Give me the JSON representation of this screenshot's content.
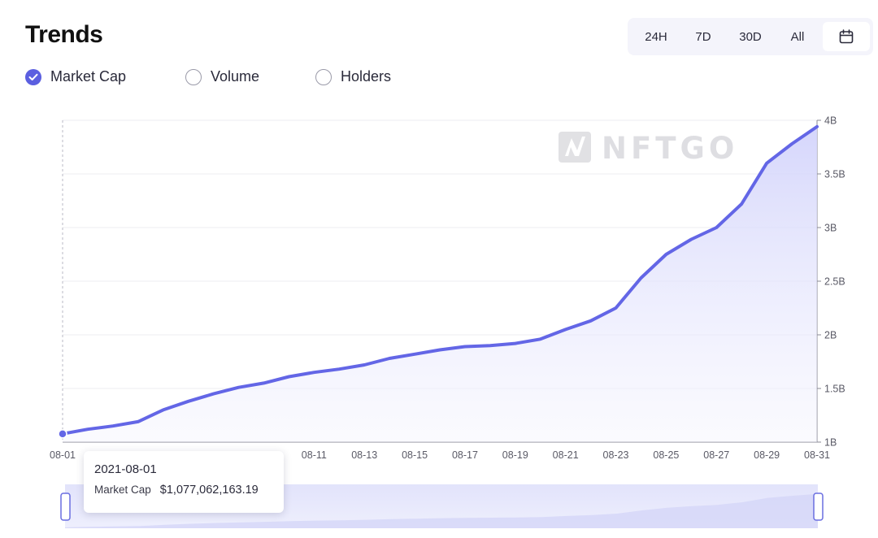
{
  "header": {
    "title": "Trends",
    "ranges": [
      "24H",
      "7D",
      "30D",
      "All"
    ],
    "calendar_icon": "calendar-icon"
  },
  "metrics": [
    {
      "label": "Market Cap",
      "checked": true
    },
    {
      "label": "Volume",
      "checked": false
    },
    {
      "label": "Holders",
      "checked": false
    }
  ],
  "watermark": {
    "text": "NFTGO",
    "logo_icon": "nftgo-logo-icon"
  },
  "tooltip": {
    "date": "2021-08-01",
    "label": "Market Cap",
    "value": "$1,077,062,163.19"
  },
  "colors": {
    "accent": "#5b5fe0",
    "line": "#6366e6",
    "area_top": "#d6d7fa",
    "grid": "#ececf2",
    "slider_bg": "#e7e8fb"
  },
  "chart_data": {
    "type": "area",
    "title": "",
    "xlabel": "",
    "ylabel": "",
    "x": [
      "08-01",
      "08-02",
      "08-03",
      "08-04",
      "08-05",
      "08-06",
      "08-07",
      "08-08",
      "08-09",
      "08-10",
      "08-11",
      "08-12",
      "08-13",
      "08-14",
      "08-15",
      "08-16",
      "08-17",
      "08-18",
      "08-19",
      "08-20",
      "08-21",
      "08-22",
      "08-23",
      "08-24",
      "08-25",
      "08-26",
      "08-27",
      "08-28",
      "08-29",
      "08-30",
      "08-31"
    ],
    "x_tick_labels": [
      "08-01",
      "08-11",
      "08-13",
      "08-15",
      "08-17",
      "08-19",
      "08-21",
      "08-23",
      "08-25",
      "08-27",
      "08-29",
      "08-31"
    ],
    "series": [
      {
        "values": [
          1.077,
          1.12,
          1.15,
          1.19,
          1.3,
          1.38,
          1.45,
          1.51,
          1.55,
          1.61,
          1.65,
          1.68,
          1.72,
          1.78,
          1.82,
          1.86,
          1.89,
          1.9,
          1.92,
          1.96,
          2.05,
          2.13,
          2.25,
          2.53,
          2.75,
          2.89,
          3.0,
          3.22,
          3.6,
          3.78,
          3.94
        ]
      }
    ],
    "ylim": [
      1,
      4
    ],
    "y_ticks": [
      {
        "value": 1,
        "label": "1B"
      },
      {
        "value": 1.5,
        "label": "1.5B"
      },
      {
        "value": 2,
        "label": "2B"
      },
      {
        "value": 2.5,
        "label": "2.5B"
      },
      {
        "value": 3,
        "label": "3B"
      },
      {
        "value": 3.5,
        "label": "3.5B"
      },
      {
        "value": 4,
        "label": "4B"
      }
    ],
    "y_unit": "B",
    "grid": true,
    "legend": "none",
    "hover_index": 0
  }
}
